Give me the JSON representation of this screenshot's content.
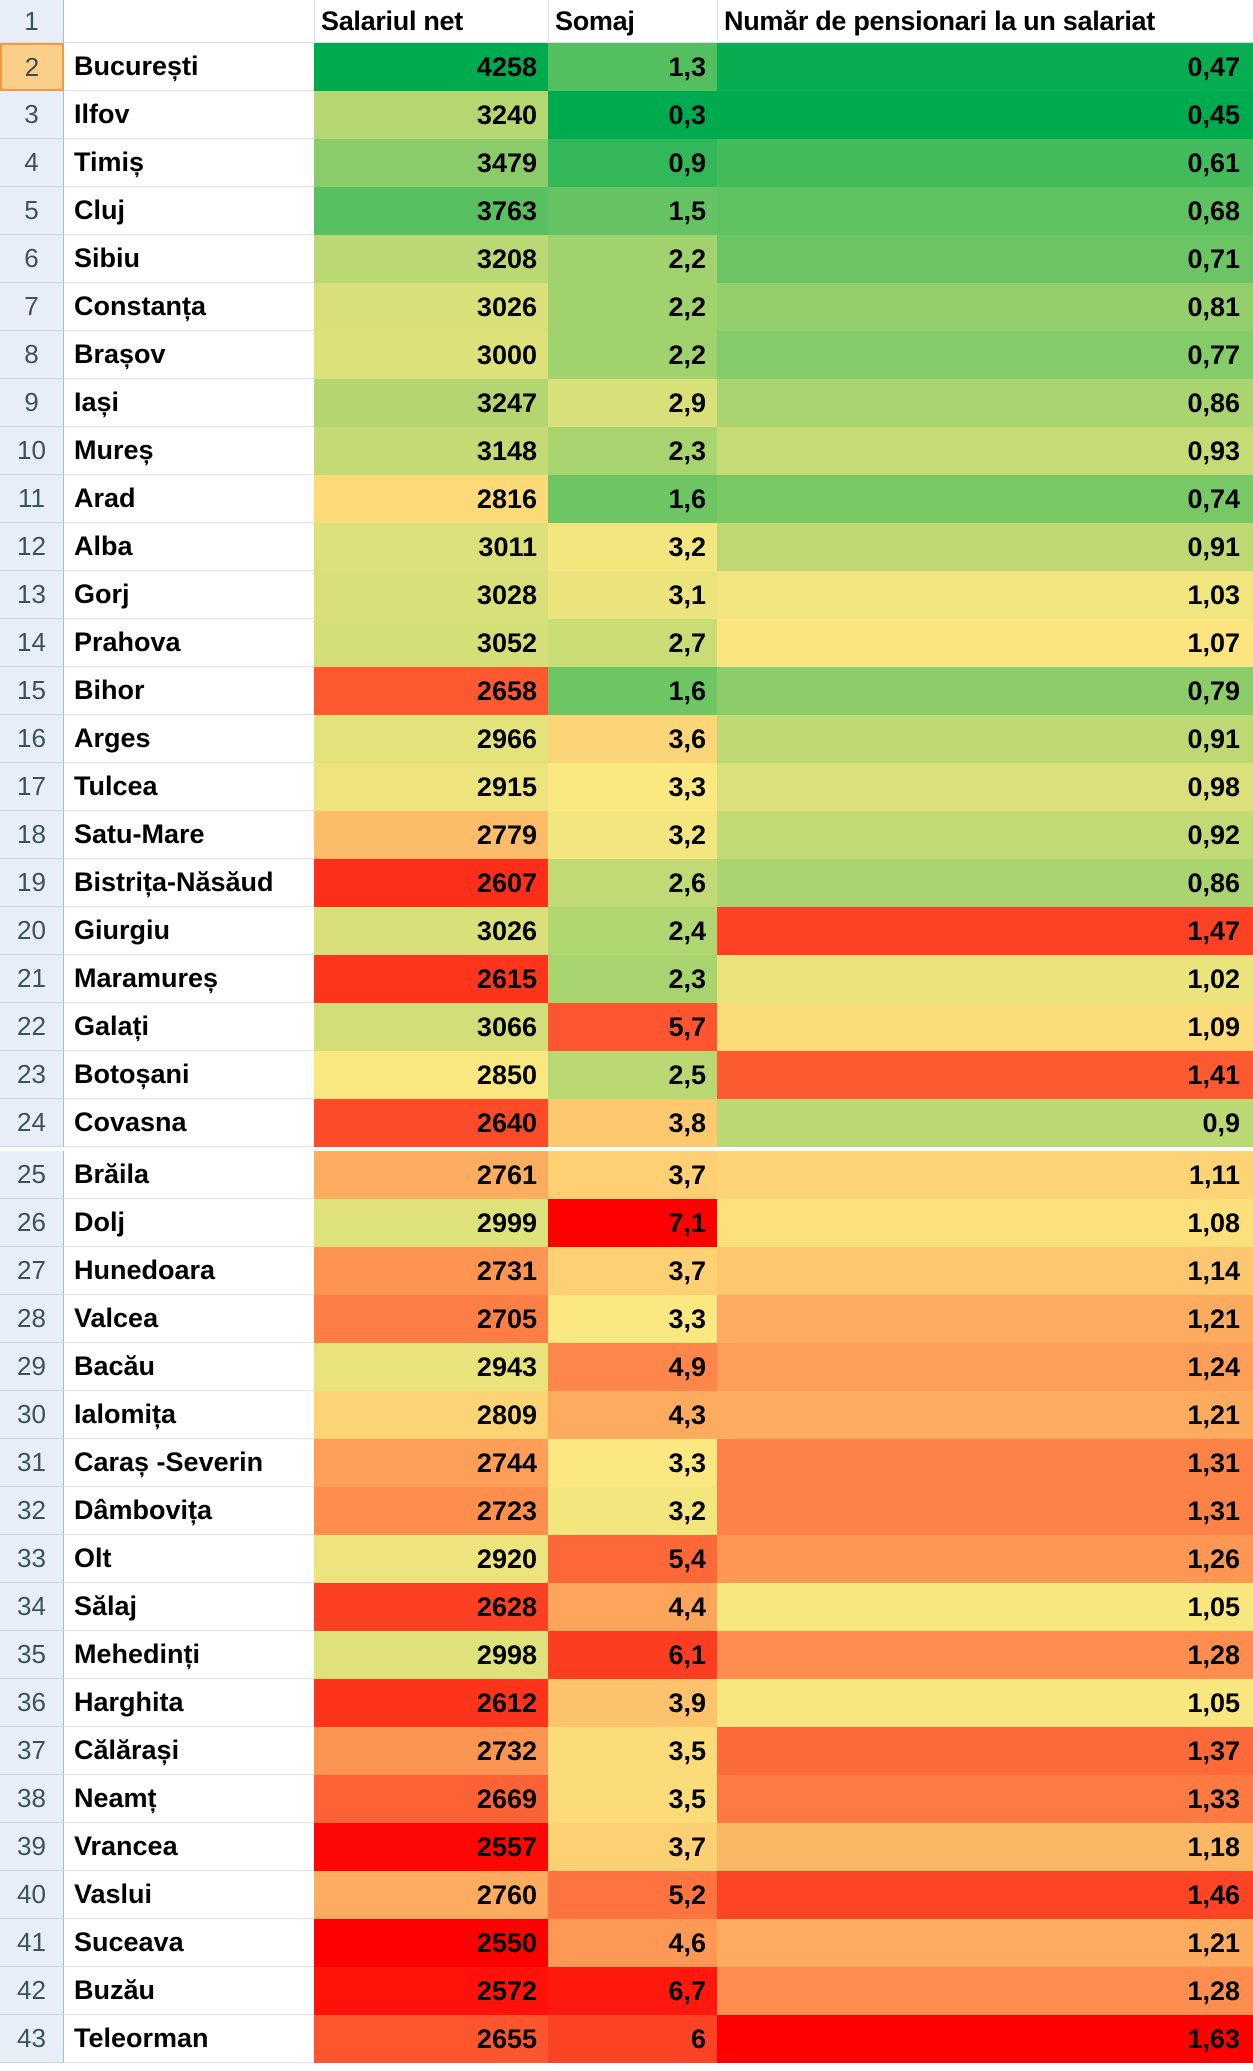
{
  "sheet": {
    "corner_row_number": "1",
    "headers": {
      "salary": "Salariul net",
      "unemployment": "Somaj",
      "pensioners": "Număr de pensionari la un salariat"
    },
    "number_format": {
      "decimal_separator": ","
    },
    "selected_row_number": 2,
    "gap_after_row": 24,
    "ui_colors": {
      "row_header_background": "#E8EEF7",
      "row_header_text": "#3C5354",
      "selected_row_header_background": "#FBCE8A",
      "selected_row_header_border": "#F09B41",
      "gridline": "#D9DFE8",
      "cell_text": "#000000"
    },
    "color_scales": {
      "salary": {
        "min": 2550,
        "mid": 2833,
        "max": 4258,
        "min_color": "#FE0000",
        "mid_color": "#FCE880",
        "max_color": "#00AB4F"
      },
      "unemployment": {
        "min": 0.3,
        "mid": 3.3,
        "max": 7.1,
        "min_color": "#00AB4F",
        "mid_color": "#FCE880",
        "max_color": "#FE0000"
      },
      "pensioners": {
        "min": 0.45,
        "mid": 1.06,
        "max": 1.63,
        "min_color": "#00AB4F",
        "mid_color": "#FCE880",
        "max_color": "#FE0000"
      }
    },
    "rows": [
      {
        "n": 2,
        "county": "București",
        "salary": 4258,
        "unemployment": 1.3,
        "pensioners": 0.47
      },
      {
        "n": 3,
        "county": "Ilfov",
        "salary": 3240,
        "unemployment": 0.3,
        "pensioners": 0.45
      },
      {
        "n": 4,
        "county": "Timiș",
        "salary": 3479,
        "unemployment": 0.9,
        "pensioners": 0.61
      },
      {
        "n": 5,
        "county": "Cluj",
        "salary": 3763,
        "unemployment": 1.5,
        "pensioners": 0.68
      },
      {
        "n": 6,
        "county": "Sibiu",
        "salary": 3208,
        "unemployment": 2.2,
        "pensioners": 0.71
      },
      {
        "n": 7,
        "county": "Constanța",
        "salary": 3026,
        "unemployment": 2.2,
        "pensioners": 0.81
      },
      {
        "n": 8,
        "county": "Brașov",
        "salary": 3000,
        "unemployment": 2.2,
        "pensioners": 0.77
      },
      {
        "n": 9,
        "county": "Iași",
        "salary": 3247,
        "unemployment": 2.9,
        "pensioners": 0.86
      },
      {
        "n": 10,
        "county": "Mureș",
        "salary": 3148,
        "unemployment": 2.3,
        "pensioners": 0.93
      },
      {
        "n": 11,
        "county": "Arad",
        "salary": 2816,
        "unemployment": 1.6,
        "pensioners": 0.74
      },
      {
        "n": 12,
        "county": "Alba",
        "salary": 3011,
        "unemployment": 3.2,
        "pensioners": 0.91
      },
      {
        "n": 13,
        "county": "Gorj",
        "salary": 3028,
        "unemployment": 3.1,
        "pensioners": 1.03
      },
      {
        "n": 14,
        "county": "Prahova",
        "salary": 3052,
        "unemployment": 2.7,
        "pensioners": 1.07
      },
      {
        "n": 15,
        "county": "Bihor",
        "salary": 2658,
        "unemployment": 1.6,
        "pensioners": 0.79
      },
      {
        "n": 16,
        "county": "Arges",
        "salary": 2966,
        "unemployment": 3.6,
        "pensioners": 0.91
      },
      {
        "n": 17,
        "county": "Tulcea",
        "salary": 2915,
        "unemployment": 3.3,
        "pensioners": 0.98
      },
      {
        "n": 18,
        "county": "Satu-Mare",
        "salary": 2779,
        "unemployment": 3.2,
        "pensioners": 0.92
      },
      {
        "n": 19,
        "county": "Bistrița-Năsăud",
        "salary": 2607,
        "unemployment": 2.6,
        "pensioners": 0.86
      },
      {
        "n": 20,
        "county": "Giurgiu",
        "salary": 3026,
        "unemployment": 2.4,
        "pensioners": 1.47
      },
      {
        "n": 21,
        "county": "Maramureș",
        "salary": 2615,
        "unemployment": 2.3,
        "pensioners": 1.02
      },
      {
        "n": 22,
        "county": "Galați",
        "salary": 3066,
        "unemployment": 5.7,
        "pensioners": 1.09
      },
      {
        "n": 23,
        "county": "Botoșani",
        "salary": 2850,
        "unemployment": 2.5,
        "pensioners": 1.41
      },
      {
        "n": 24,
        "county": "Covasna",
        "salary": 2640,
        "unemployment": 3.8,
        "pensioners": 0.9
      },
      {
        "n": 25,
        "county": "Brăila",
        "salary": 2761,
        "unemployment": 3.7,
        "pensioners": 1.11
      },
      {
        "n": 26,
        "county": "Dolj",
        "salary": 2999,
        "unemployment": 7.1,
        "pensioners": 1.08
      },
      {
        "n": 27,
        "county": "Hunedoara",
        "salary": 2731,
        "unemployment": 3.7,
        "pensioners": 1.14
      },
      {
        "n": 28,
        "county": "Valcea",
        "salary": 2705,
        "unemployment": 3.3,
        "pensioners": 1.21
      },
      {
        "n": 29,
        "county": "Bacău",
        "salary": 2943,
        "unemployment": 4.9,
        "pensioners": 1.24
      },
      {
        "n": 30,
        "county": "Ialomița",
        "salary": 2809,
        "unemployment": 4.3,
        "pensioners": 1.21
      },
      {
        "n": 31,
        "county": "Caraș -Severin",
        "salary": 2744,
        "unemployment": 3.3,
        "pensioners": 1.31
      },
      {
        "n": 32,
        "county": "Dâmbovița",
        "salary": 2723,
        "unemployment": 3.2,
        "pensioners": 1.31
      },
      {
        "n": 33,
        "county": "Olt",
        "salary": 2920,
        "unemployment": 5.4,
        "pensioners": 1.26
      },
      {
        "n": 34,
        "county": "Sălaj",
        "salary": 2628,
        "unemployment": 4.4,
        "pensioners": 1.05
      },
      {
        "n": 35,
        "county": "Mehedinți",
        "salary": 2998,
        "unemployment": 6.1,
        "pensioners": 1.28
      },
      {
        "n": 36,
        "county": "Harghita",
        "salary": 2612,
        "unemployment": 3.9,
        "pensioners": 1.05
      },
      {
        "n": 37,
        "county": "Călărași",
        "salary": 2732,
        "unemployment": 3.5,
        "pensioners": 1.37
      },
      {
        "n": 38,
        "county": "Neamț",
        "salary": 2669,
        "unemployment": 3.5,
        "pensioners": 1.33
      },
      {
        "n": 39,
        "county": "Vrancea",
        "salary": 2557,
        "unemployment": 3.7,
        "pensioners": 1.18
      },
      {
        "n": 40,
        "county": "Vaslui",
        "salary": 2760,
        "unemployment": 5.2,
        "pensioners": 1.46
      },
      {
        "n": 41,
        "county": "Suceava",
        "salary": 2550,
        "unemployment": 4.6,
        "pensioners": 1.21
      },
      {
        "n": 42,
        "county": "Buzău",
        "salary": 2572,
        "unemployment": 6.7,
        "pensioners": 1.28
      },
      {
        "n": 43,
        "county": "Teleorman",
        "salary": 2655,
        "unemployment": 6,
        "pensioners": 1.63
      }
    ]
  }
}
